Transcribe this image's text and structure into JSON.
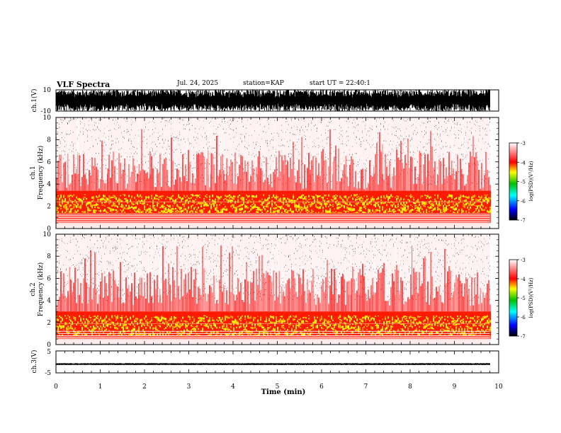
{
  "header": {
    "title": "VLF Spectra",
    "date": "Jul. 24, 2025",
    "station": "station=KAP",
    "start": "start UT =  22:40:1"
  },
  "colors": {
    "white": "#ffffff",
    "red": "#ff0000",
    "yellow": "#ffff00",
    "green": "#00c000",
    "cyan": "#00ffff",
    "blue": "#0000ff",
    "black": "#000000"
  },
  "chart_data": [
    {
      "type": "line",
      "name": "ch1-waveform",
      "ylabel": "ch.1(V)",
      "ylim": [
        -10,
        10
      ],
      "yticks": [
        "10",
        "-10"
      ],
      "xlim": [
        0,
        10
      ],
      "description_values": {
        "typical_min_V": -8,
        "typical_max_V": 8,
        "trace_end_min": 9.8
      }
    },
    {
      "type": "heatmap",
      "name": "ch1-spectrogram",
      "ylabel": "ch.1\nFrequency (kHz)",
      "ylabel_lines": [
        "ch.1",
        "Frequency (kHz)"
      ],
      "ylim": [
        0,
        10
      ],
      "yticks": [
        0,
        2,
        4,
        6,
        8,
        10
      ],
      "xlim": [
        0,
        10
      ],
      "data_extent_min": 9.8,
      "band_kHz": {
        "strong_low": 1.4,
        "strong_high": 3.4,
        "noise_top": 10
      },
      "colorbar": {
        "label": "log(PSD)(V²/Hz)",
        "range": [
          -7,
          -3
        ],
        "ticks": [
          -3,
          -4,
          -5,
          -6,
          -7
        ]
      }
    },
    {
      "type": "heatmap",
      "name": "ch2-spectrogram",
      "ylabel": "ch.2\nFrequency (kHz)",
      "ylabel_lines": [
        "ch.2",
        "Frequency (kHz)"
      ],
      "ylim": [
        0,
        10
      ],
      "yticks": [
        0,
        2,
        4,
        6,
        8,
        10
      ],
      "xlim": [
        0,
        10
      ],
      "data_extent_min": 9.8,
      "band_kHz": {
        "strong_low": 0.8,
        "strong_high": 3.0,
        "noise_top": 10
      },
      "colorbar": {
        "label": "log(PSD)(V²/Hz)",
        "range": [
          -7,
          -3
        ],
        "ticks": [
          -3,
          -4,
          -5,
          -6,
          -7
        ]
      }
    },
    {
      "type": "line",
      "name": "ch3-waveform",
      "ylabel": "ch.3(V)",
      "ylim": [
        -5,
        5
      ],
      "yticks": [
        "5",
        "-5"
      ],
      "xlim": [
        0,
        10
      ],
      "description_values": {
        "level_V": -1,
        "half_width_V": 0.4,
        "trace_end_min": 9.8
      }
    }
  ],
  "xaxis": {
    "label": "Time (min)",
    "ticks": [
      "0",
      "1",
      "2",
      "3",
      "4",
      "5",
      "6",
      "7",
      "8",
      "9",
      "10"
    ]
  }
}
